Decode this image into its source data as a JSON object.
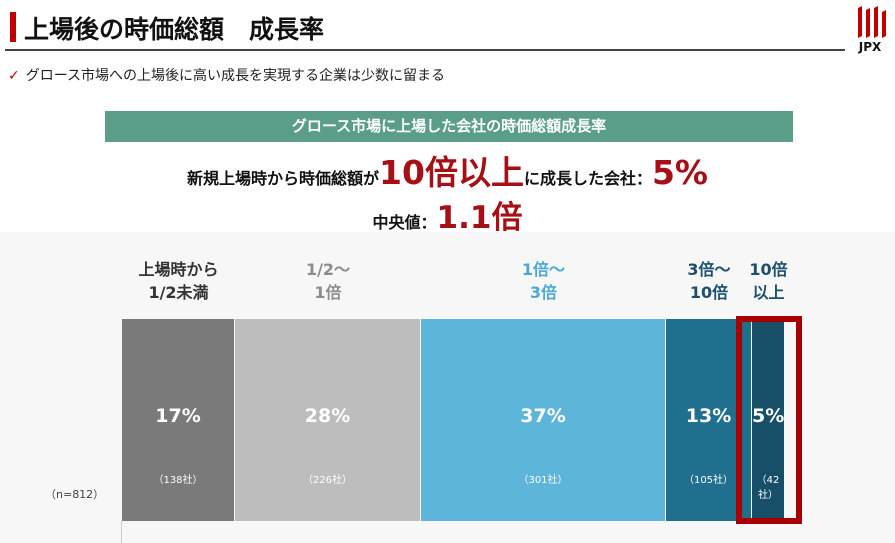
{
  "header": {
    "title": "上場後の時価総額　成長率",
    "logo": "JPX"
  },
  "bullet": "グロース市場への上場後に高い成長を実現する企業は少数に留まる",
  "banner": "グロース市場に上場した会社の時価総額成長率",
  "headline": {
    "pre": "新規上場時から時価総額が",
    "big": "10倍以上",
    "mid": "に成長した会社：",
    "value": "5%"
  },
  "median": {
    "label": "中央値：",
    "value": "1.1倍"
  },
  "chart_data": {
    "type": "bar",
    "orientation": "horizontal-stacked-100",
    "n_label": "（n=812）",
    "categories": [
      "上場時から\n1/2未満",
      "1/2～\n1倍",
      "1倍～\n3倍",
      "3倍～\n10倍",
      "10倍\n以上"
    ],
    "values": [
      17,
      28,
      37,
      13,
      5
    ],
    "value_labels": [
      "17%",
      "28%",
      "37%",
      "13%",
      "5%"
    ],
    "count_labels": [
      "（138社）",
      "（226社）",
      "（301社）",
      "（105社）",
      "（42社）"
    ],
    "counts": [
      138,
      226,
      301,
      105,
      42
    ],
    "colors": [
      "#7a7a7a",
      "#bdbdbd",
      "#5db5d9",
      "#216f8f",
      "#174f69"
    ],
    "label_colors": [
      "#333333",
      "#8c8c8c",
      "#4aaad4",
      "#1b4f6a",
      "#1b4f6a"
    ],
    "highlight": "10倍\n以上"
  }
}
